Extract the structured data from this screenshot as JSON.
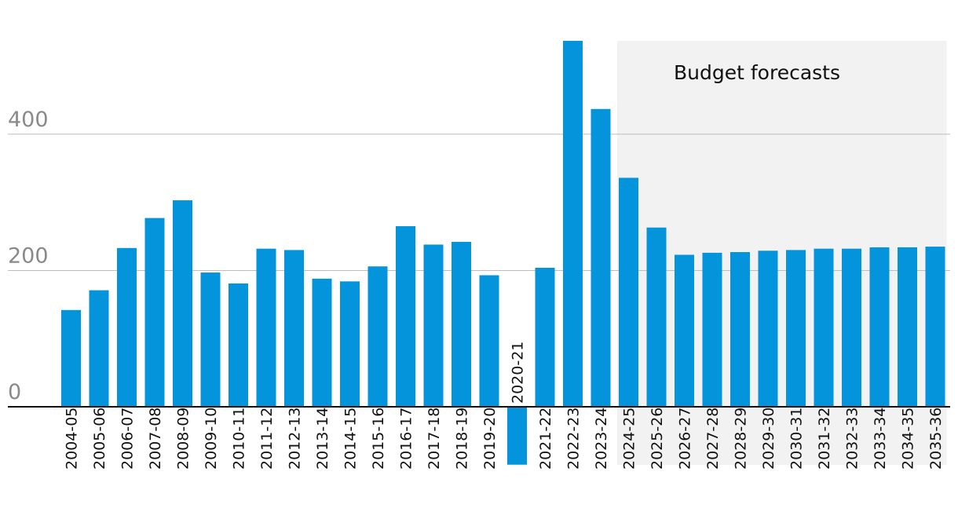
{
  "chart_data": {
    "type": "bar",
    "categories": [
      "2004-05",
      "2005-06",
      "2006-07",
      "2007-08",
      "2008-09",
      "2009-10",
      "2010-11",
      "2011-12",
      "2012-13",
      "2013-14",
      "2014-15",
      "2015-16",
      "2016-17",
      "2017-18",
      "2018-19",
      "2019-20",
      "2020-21",
      "2021-22",
      "2022-23",
      "2023-24",
      "2024-25",
      "2025-26",
      "2026-27",
      "2027-28",
      "2028-29",
      "2029-30",
      "2030-31",
      "2031-32",
      "2032-33",
      "2033-34",
      "2034-35",
      "2035-36"
    ],
    "values": [
      142,
      171,
      233,
      277,
      303,
      197,
      181,
      232,
      230,
      188,
      184,
      206,
      265,
      238,
      242,
      193,
      -85,
      204,
      537,
      437,
      336,
      263,
      223,
      226,
      227,
      229,
      230,
      232,
      232,
      234,
      234,
      235
    ],
    "title": "",
    "xlabel": "",
    "ylabel": "",
    "ylim": [
      0,
      537
    ],
    "yticks": [
      0,
      200,
      400
    ],
    "ytick_labels": [
      "0",
      "200",
      "400"
    ],
    "grid": true,
    "bar_color": "#0394db",
    "forecast_region": {
      "label": "Budget forecasts",
      "start_category": "2024-25",
      "end_category": "2035-36",
      "color": "#f2f2f2"
    }
  }
}
